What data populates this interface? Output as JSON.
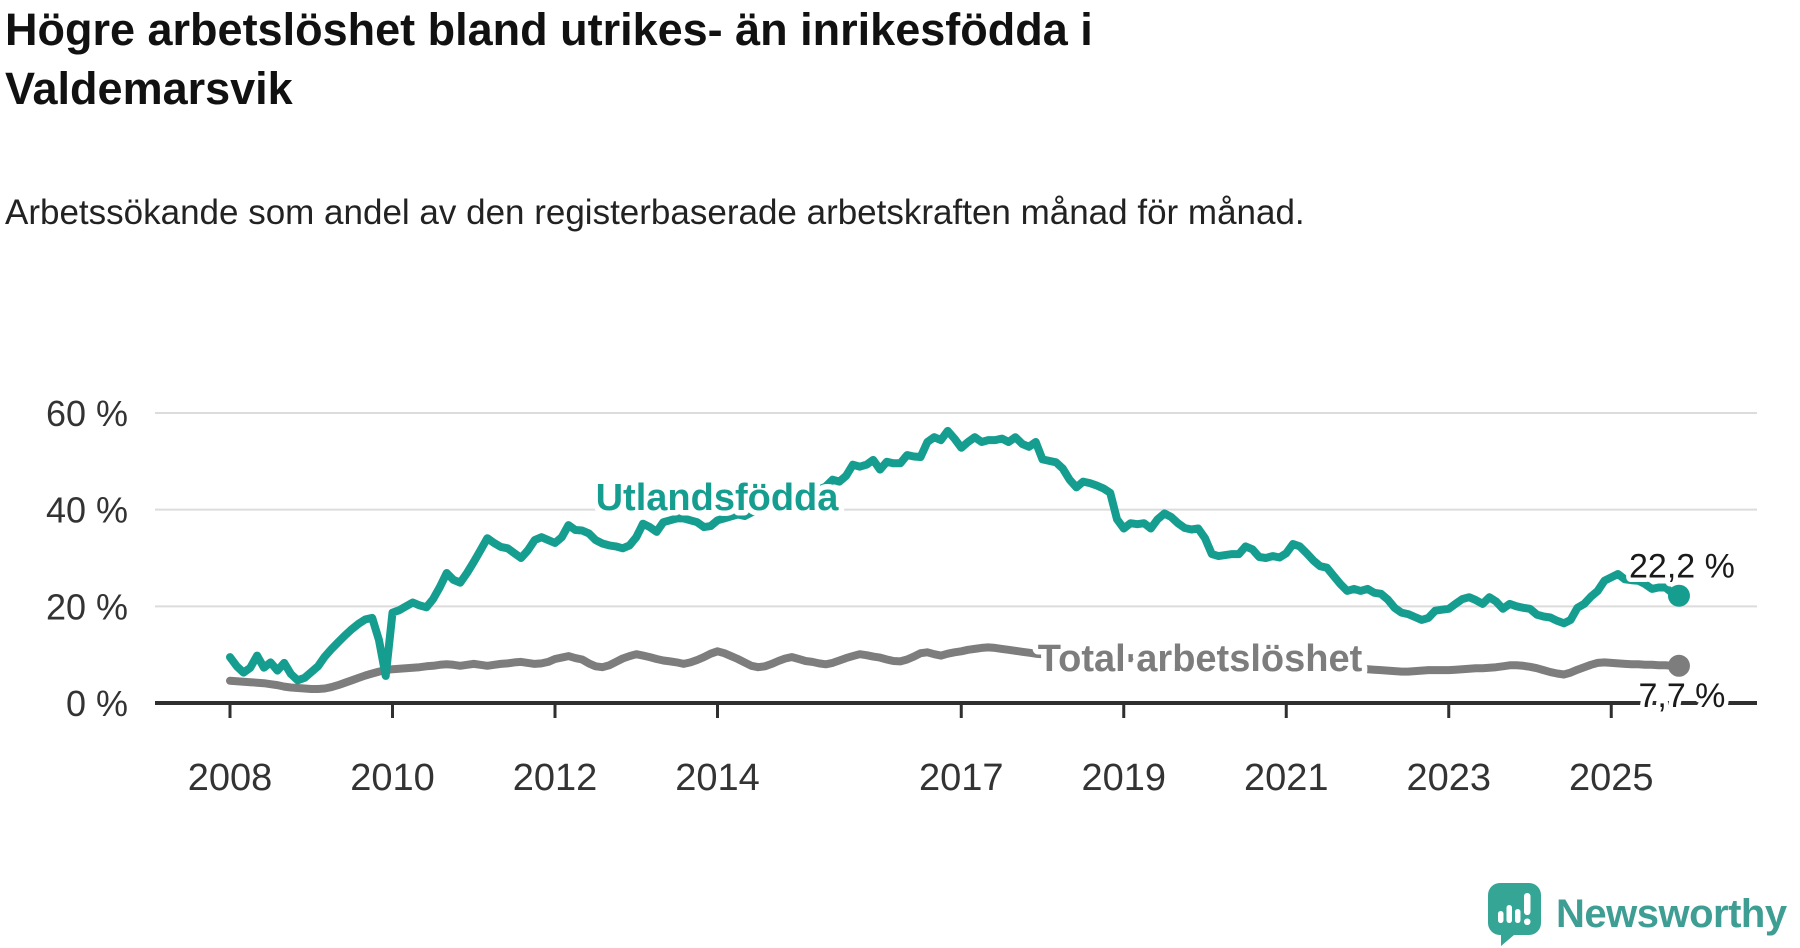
{
  "chart_data": {
    "type": "line",
    "title": "Högre arbetslöshet bland utrikes- än inrikesfödda i Valdemarsvik",
    "subtitle": "Arbetssökande som andel av den registerbaserade arbetskraften månad för månad.",
    "unit": "%",
    "grid": true,
    "legend_position": "inline-labels",
    "x": {
      "start_year": 2008,
      "start_month": 1,
      "freq": "monthly",
      "tick_years": [
        2008,
        2010,
        2012,
        2014,
        2017,
        2019,
        2021,
        2023,
        2025
      ]
    },
    "y": {
      "range": [
        0,
        62
      ],
      "ticks": [
        {
          "value": 60,
          "label": "60 %"
        },
        {
          "value": 40,
          "label": "40 %"
        },
        {
          "value": 20,
          "label": "20 %"
        },
        {
          "value": 0,
          "label": "0 %"
        }
      ]
    },
    "series": [
      {
        "name": "Utlandsfödda",
        "color": "#159e90",
        "end_label": "22,2 %",
        "last_value": 22.2,
        "values": [
          9.5,
          7.6,
          6.3,
          7.3,
          9.8,
          7.3,
          8.4,
          6.7,
          8.3,
          6.0,
          4.7,
          5.2,
          6.4,
          7.6,
          9.6,
          11.2,
          12.6,
          14.0,
          15.3,
          16.4,
          17.3,
          17.6,
          13.0,
          5.6,
          18.7,
          19.2,
          20.0,
          20.8,
          20.2,
          19.8,
          21.5,
          24.0,
          26.9,
          25.5,
          24.9,
          26.9,
          29.2,
          31.6,
          34.1,
          33.1,
          32.3,
          32.0,
          31.0,
          30.0,
          31.6,
          33.7,
          34.3,
          33.7,
          33.1,
          34.3,
          36.8,
          35.8,
          35.7,
          35.1,
          33.7,
          33.0,
          32.6,
          32.4,
          32.0,
          32.6,
          34.3,
          37.1,
          36.4,
          35.4,
          37.4,
          37.8,
          38.2,
          38.2,
          37.8,
          37.4,
          36.4,
          36.6,
          37.8,
          38.2,
          38.6,
          39.0,
          38.7,
          39.4,
          40.0,
          40.5,
          41.0,
          41.5,
          42.0,
          41.6,
          42.3,
          43.0,
          43.6,
          44.2,
          44.8,
          46.2,
          45.8,
          47.0,
          49.3,
          48.9,
          49.3,
          50.3,
          48.3,
          49.9,
          49.6,
          49.6,
          51.3,
          51.0,
          50.9,
          54.0,
          55.0,
          54.4,
          56.3,
          54.7,
          52.8,
          54.0,
          55.0,
          54.0,
          54.4,
          54.4,
          54.7,
          54.0,
          55.0,
          53.6,
          53.0,
          54.0,
          50.4,
          50.1,
          49.8,
          48.5,
          46.2,
          44.6,
          45.8,
          45.5,
          45.0,
          44.4,
          43.5,
          38.0,
          36.1,
          37.2,
          37.0,
          37.2,
          36.1,
          38.0,
          39.2,
          38.5,
          37.2,
          36.2,
          35.9,
          36.1,
          34.1,
          30.8,
          30.4,
          30.6,
          30.8,
          30.8,
          32.4,
          31.8,
          30.2,
          30.0,
          30.4,
          30.1,
          31.0,
          32.9,
          32.4,
          31.0,
          29.5,
          28.3,
          28.0,
          26.3,
          24.6,
          23.2,
          23.6,
          23.2,
          23.6,
          22.8,
          22.6,
          21.4,
          19.7,
          18.7,
          18.4,
          17.8,
          17.2,
          17.6,
          19.1,
          19.3,
          19.5,
          20.5,
          21.5,
          21.9,
          21.3,
          20.5,
          21.9,
          21.0,
          19.5,
          20.5,
          20.0,
          19.7,
          19.5,
          18.3,
          17.9,
          17.7,
          17.0,
          16.5,
          17.2,
          19.7,
          20.5,
          22.0,
          23.2,
          25.3,
          26.0,
          26.7,
          25.6,
          25.4,
          25.3,
          24.6,
          23.6,
          23.9,
          23.9,
          22.8,
          22.2
        ]
      },
      {
        "name": "Total arbetslöshet",
        "color": "#7d7d7d",
        "end_label": "7,7 %",
        "last_value": 7.7,
        "values": [
          4.6,
          4.5,
          4.4,
          4.3,
          4.2,
          4.1,
          3.9,
          3.7,
          3.4,
          3.2,
          3.1,
          3.0,
          2.9,
          2.9,
          3.0,
          3.3,
          3.7,
          4.2,
          4.7,
          5.2,
          5.7,
          6.1,
          6.5,
          6.8,
          7.0,
          7.1,
          7.2,
          7.3,
          7.4,
          7.6,
          7.7,
          7.9,
          8.0,
          7.9,
          7.7,
          7.9,
          8.1,
          7.9,
          7.7,
          7.9,
          8.1,
          8.2,
          8.4,
          8.5,
          8.3,
          8.1,
          8.2,
          8.5,
          9.1,
          9.4,
          9.7,
          9.3,
          9.0,
          8.2,
          7.6,
          7.4,
          7.8,
          8.5,
          9.2,
          9.7,
          10.1,
          9.8,
          9.5,
          9.1,
          8.8,
          8.6,
          8.4,
          8.1,
          8.4,
          8.9,
          9.5,
          10.2,
          10.7,
          10.3,
          9.7,
          9.1,
          8.4,
          7.7,
          7.4,
          7.6,
          8.1,
          8.7,
          9.2,
          9.5,
          9.1,
          8.7,
          8.5,
          8.2,
          8.0,
          8.3,
          8.8,
          9.3,
          9.7,
          10.1,
          9.9,
          9.6,
          9.4,
          9.0,
          8.7,
          8.6,
          9.0,
          9.6,
          10.3,
          10.5,
          10.1,
          9.8,
          10.2,
          10.5,
          10.7,
          11.0,
          11.2,
          11.4,
          11.5,
          11.4,
          11.2,
          11.0,
          10.8,
          10.6,
          10.4,
          10.2,
          10.1,
          10.0,
          9.9,
          9.8,
          9.7,
          9.6,
          9.5,
          9.4,
          9.3,
          9.3,
          9.2,
          9.3,
          9.4,
          9.3,
          9.2,
          9.1,
          9.0,
          8.9,
          8.9,
          8.8,
          8.8,
          8.7,
          8.7,
          8.8,
          8.8,
          8.7,
          8.7,
          8.8,
          8.9,
          8.9,
          8.8,
          8.6,
          8.5,
          8.3,
          8.2,
          8.1,
          8.1,
          8.2,
          8.2,
          8.1,
          8.0,
          7.9,
          7.7,
          7.6,
          7.4,
          7.3,
          7.2,
          7.1,
          7.0,
          6.9,
          6.8,
          6.7,
          6.6,
          6.5,
          6.5,
          6.6,
          6.7,
          6.8,
          6.8,
          6.8,
          6.8,
          6.9,
          7.0,
          7.1,
          7.2,
          7.2,
          7.3,
          7.4,
          7.6,
          7.8,
          7.8,
          7.7,
          7.5,
          7.2,
          6.8,
          6.4,
          6.1,
          5.9,
          6.3,
          6.9,
          7.4,
          7.9,
          8.3,
          8.4,
          8.3,
          8.2,
          8.1,
          8.0,
          8.0,
          7.9,
          7.9,
          7.8,
          7.8,
          7.7,
          7.7
        ]
      }
    ],
    "style": {
      "grid_color": "#dcdcdc",
      "axis_color": "#2f2f2f",
      "tick_label_color": "#333333",
      "value_label_color": "#1a1a1a"
    }
  },
  "branding": {
    "logo_text": "Newsworthy",
    "logo_color": "#3f9e94",
    "logo_icon": "speech-bubble-bar-chart-exclamation"
  }
}
